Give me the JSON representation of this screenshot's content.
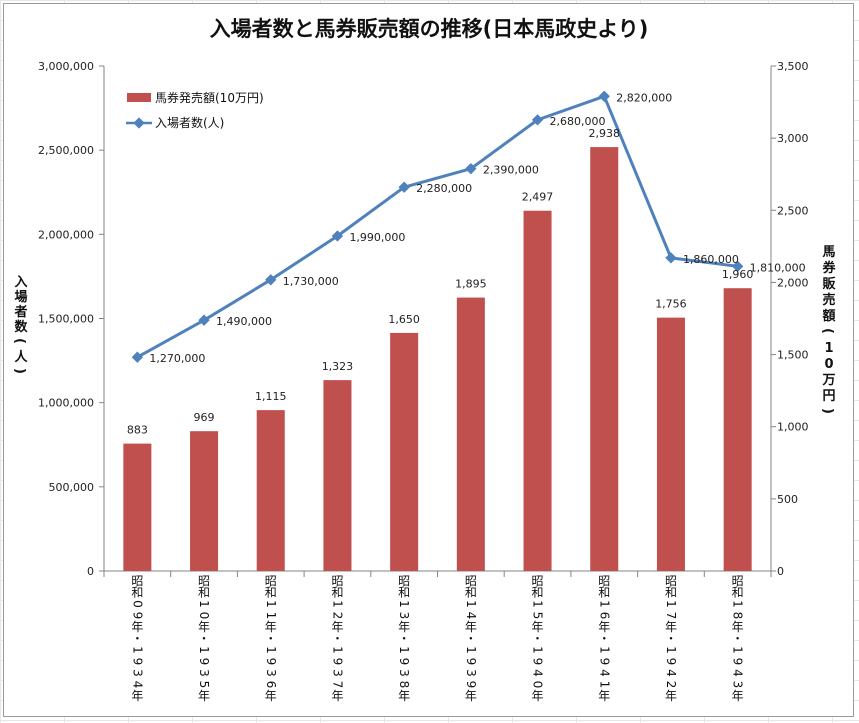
{
  "chart_data": {
    "type": "bar+line",
    "title": "入場者数と馬券販売額の推移(日本馬政史より)",
    "categories": [
      "昭和09年・1934年",
      "昭和10年・1935年",
      "昭和11年・1936年",
      "昭和12年・1937年",
      "昭和13年・1938年",
      "昭和14年・1939年",
      "昭和15年・1940年",
      "昭和16年・1941年",
      "昭和17年・1942年",
      "昭和18年・1943年"
    ],
    "series": [
      {
        "name": "馬券発売額(10万円)",
        "type": "bar",
        "axis": "right",
        "color": "#c0504d",
        "values": [
          883,
          969,
          1115,
          1323,
          1650,
          1895,
          2497,
          2938,
          1756,
          1960
        ]
      },
      {
        "name": "入場者数(人)",
        "type": "line",
        "axis": "left",
        "color": "#4f81bd",
        "values": [
          1270000,
          1490000,
          1730000,
          1990000,
          2280000,
          2390000,
          2680000,
          2820000,
          1860000,
          1810000
        ]
      }
    ],
    "left_axis": {
      "label": "入場者数(人)",
      "ylim": [
        0,
        3000000
      ],
      "ticks": [
        "0",
        "500,000",
        "1,000,000",
        "1,500,000",
        "2,000,000",
        "2,500,000",
        "3,000,000"
      ]
    },
    "right_axis": {
      "label": "馬券販売額(10万円)",
      "ylim": [
        0,
        3500
      ],
      "ticks": [
        "0",
        "500",
        "1,000",
        "1,500",
        "2,000",
        "2,500",
        "3,000",
        "3,500"
      ]
    },
    "bar_labels": [
      "883",
      "969",
      "1,115",
      "1,323",
      "1,650",
      "1,895",
      "2,497",
      "2,938",
      "1,756",
      "1,960"
    ],
    "line_labels": [
      "1,270,000",
      "1,490,000",
      "1,730,000",
      "1,990,000",
      "2,280,000",
      "2,390,000",
      "2,680,000",
      "2,820,000",
      "1,860,000",
      "1,810,000"
    ],
    "legend_position": "top-left",
    "grid": false
  }
}
